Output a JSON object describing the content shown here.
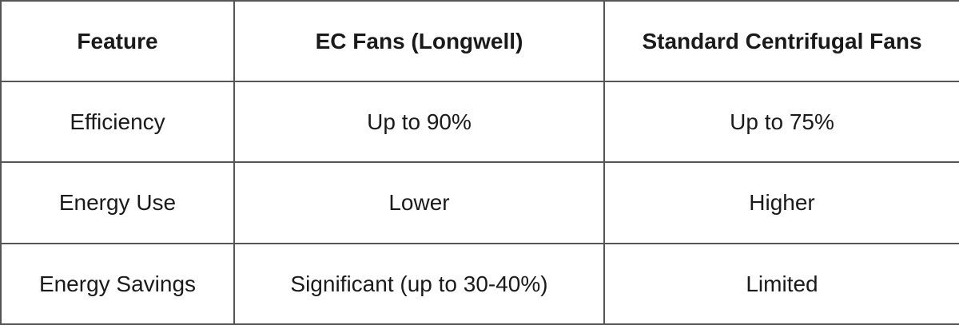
{
  "table": {
    "header": [
      "Feature",
      "EC Fans (Longwell)",
      "Standard Centrifugal Fans"
    ],
    "rows": [
      {
        "cells": [
          "Efficiency",
          "Up to 90%",
          "Up to 75%"
        ]
      },
      {
        "cells": [
          "Energy Use",
          "Lower",
          "Higher"
        ]
      },
      {
        "cells": [
          "Energy Savings",
          "Significant (up to 30-40%)",
          "Limited"
        ]
      }
    ]
  },
  "colors": {
    "border": "#555555",
    "text": "#1a1a1a",
    "background": "#ffffff"
  },
  "chart_data": {
    "type": "table",
    "columns": [
      "Feature",
      "EC Fans (Longwell)",
      "Standard Centrifugal Fans"
    ],
    "rows": [
      [
        "Efficiency",
        "Up to 90%",
        "Up to 75%"
      ],
      [
        "Energy Use",
        "Lower",
        "Higher"
      ],
      [
        "Energy Savings",
        "Significant (up to 30-40%)",
        "Limited"
      ]
    ]
  }
}
